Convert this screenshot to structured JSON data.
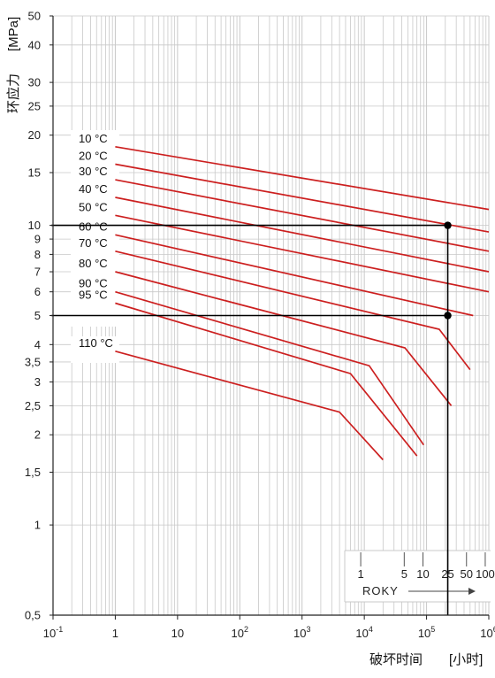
{
  "chart_data": {
    "type": "line",
    "title": "",
    "xlabel": "破坏时间",
    "xunit": "[小时]",
    "ylabel": "环应力",
    "yunit": "[MPa]",
    "xscale": "log",
    "yscale": "log",
    "xlim": [
      0.1,
      1000000
    ],
    "ylim": [
      0.5,
      50
    ],
    "x_ticks": [
      {
        "v": 0.1,
        "label": "10",
        "exp": "-1"
      },
      {
        "v": 1,
        "label": "1",
        "exp": ""
      },
      {
        "v": 10,
        "label": "10",
        "exp": ""
      },
      {
        "v": 100,
        "label": "10",
        "exp": "2"
      },
      {
        "v": 1000,
        "label": "10",
        "exp": "3"
      },
      {
        "v": 10000,
        "label": "10",
        "exp": "4"
      },
      {
        "v": 100000,
        "label": "10",
        "exp": "5"
      },
      {
        "v": 1000000,
        "label": "10",
        "exp": "6"
      }
    ],
    "y_ticks": [
      {
        "v": 0.5,
        "label": "0,5"
      },
      {
        "v": 1,
        "label": "1"
      },
      {
        "v": 1.5,
        "label": "1,5"
      },
      {
        "v": 2,
        "label": "2"
      },
      {
        "v": 2.5,
        "label": "2,5"
      },
      {
        "v": 3,
        "label": "3"
      },
      {
        "v": 3.5,
        "label": "3,5"
      },
      {
        "v": 4,
        "label": "4"
      },
      {
        "v": 5,
        "label": "5"
      },
      {
        "v": 6,
        "label": "6"
      },
      {
        "v": 7,
        "label": "7"
      },
      {
        "v": 8,
        "label": "8"
      },
      {
        "v": 9,
        "label": "9"
      },
      {
        "v": 10,
        "label": "10"
      },
      {
        "v": 15,
        "label": "15"
      },
      {
        "v": 20,
        "label": "20"
      },
      {
        "v": 25,
        "label": "25"
      },
      {
        "v": 30,
        "label": "30"
      },
      {
        "v": 40,
        "label": "40"
      },
      {
        "v": 50,
        "label": "50"
      }
    ],
    "years_axis": {
      "title": "ROKY",
      "ticks": [
        {
          "label": "1",
          "hours": 8760
        },
        {
          "label": "5",
          "hours": 43800
        },
        {
          "label": "10",
          "hours": 87600
        },
        {
          "label": "25",
          "hours": 219000
        },
        {
          "label": "50",
          "hours": 438000
        },
        {
          "label": "100",
          "hours": 876000
        }
      ]
    },
    "series": [
      {
        "name": "10 °C",
        "points": [
          [
            1,
            18.3
          ],
          [
            1000000,
            11.3
          ]
        ]
      },
      {
        "name": "20 °C",
        "points": [
          [
            1,
            16.0
          ],
          [
            1000000,
            9.5
          ]
        ]
      },
      {
        "name": "30 °C",
        "points": [
          [
            1,
            14.2
          ],
          [
            1000000,
            8.2
          ]
        ]
      },
      {
        "name": "40 °C",
        "points": [
          [
            1,
            12.4
          ],
          [
            1000000,
            7.0
          ]
        ]
      },
      {
        "name": "50 °C",
        "points": [
          [
            1,
            10.8
          ],
          [
            1000000,
            6.0
          ]
        ]
      },
      {
        "name": "60 °C",
        "points": [
          [
            1,
            9.3
          ],
          [
            560000,
            5.0
          ]
        ]
      },
      {
        "name": "70 °C",
        "points": [
          [
            1,
            8.2
          ],
          [
            160000,
            4.5
          ],
          [
            500000,
            3.3
          ]
        ]
      },
      {
        "name": "80 °C",
        "points": [
          [
            1,
            7.0
          ],
          [
            45000,
            3.9
          ],
          [
            250000,
            2.5
          ]
        ]
      },
      {
        "name": "90 °C",
        "points": [
          [
            1,
            6.0
          ],
          [
            12000,
            3.4
          ],
          [
            90000,
            1.85
          ]
        ]
      },
      {
        "name": "95 °C",
        "points": [
          [
            1,
            5.5
          ],
          [
            6000,
            3.2
          ],
          [
            70000,
            1.7
          ]
        ]
      },
      {
        "name": "110 °C",
        "points": [
          [
            1,
            3.8
          ],
          [
            4000,
            2.38
          ],
          [
            20000,
            1.65
          ]
        ]
      }
    ],
    "reference_lines": {
      "horizontal": [
        10,
        5
      ],
      "vertical": [
        219000
      ],
      "markers": [
        [
          219000,
          10
        ],
        [
          219000,
          5
        ]
      ]
    },
    "colors": {
      "curve": "#cc1f1f",
      "grid": "#c8c8c8",
      "reference": "#000000",
      "axis": "#222222"
    },
    "grid": true
  }
}
